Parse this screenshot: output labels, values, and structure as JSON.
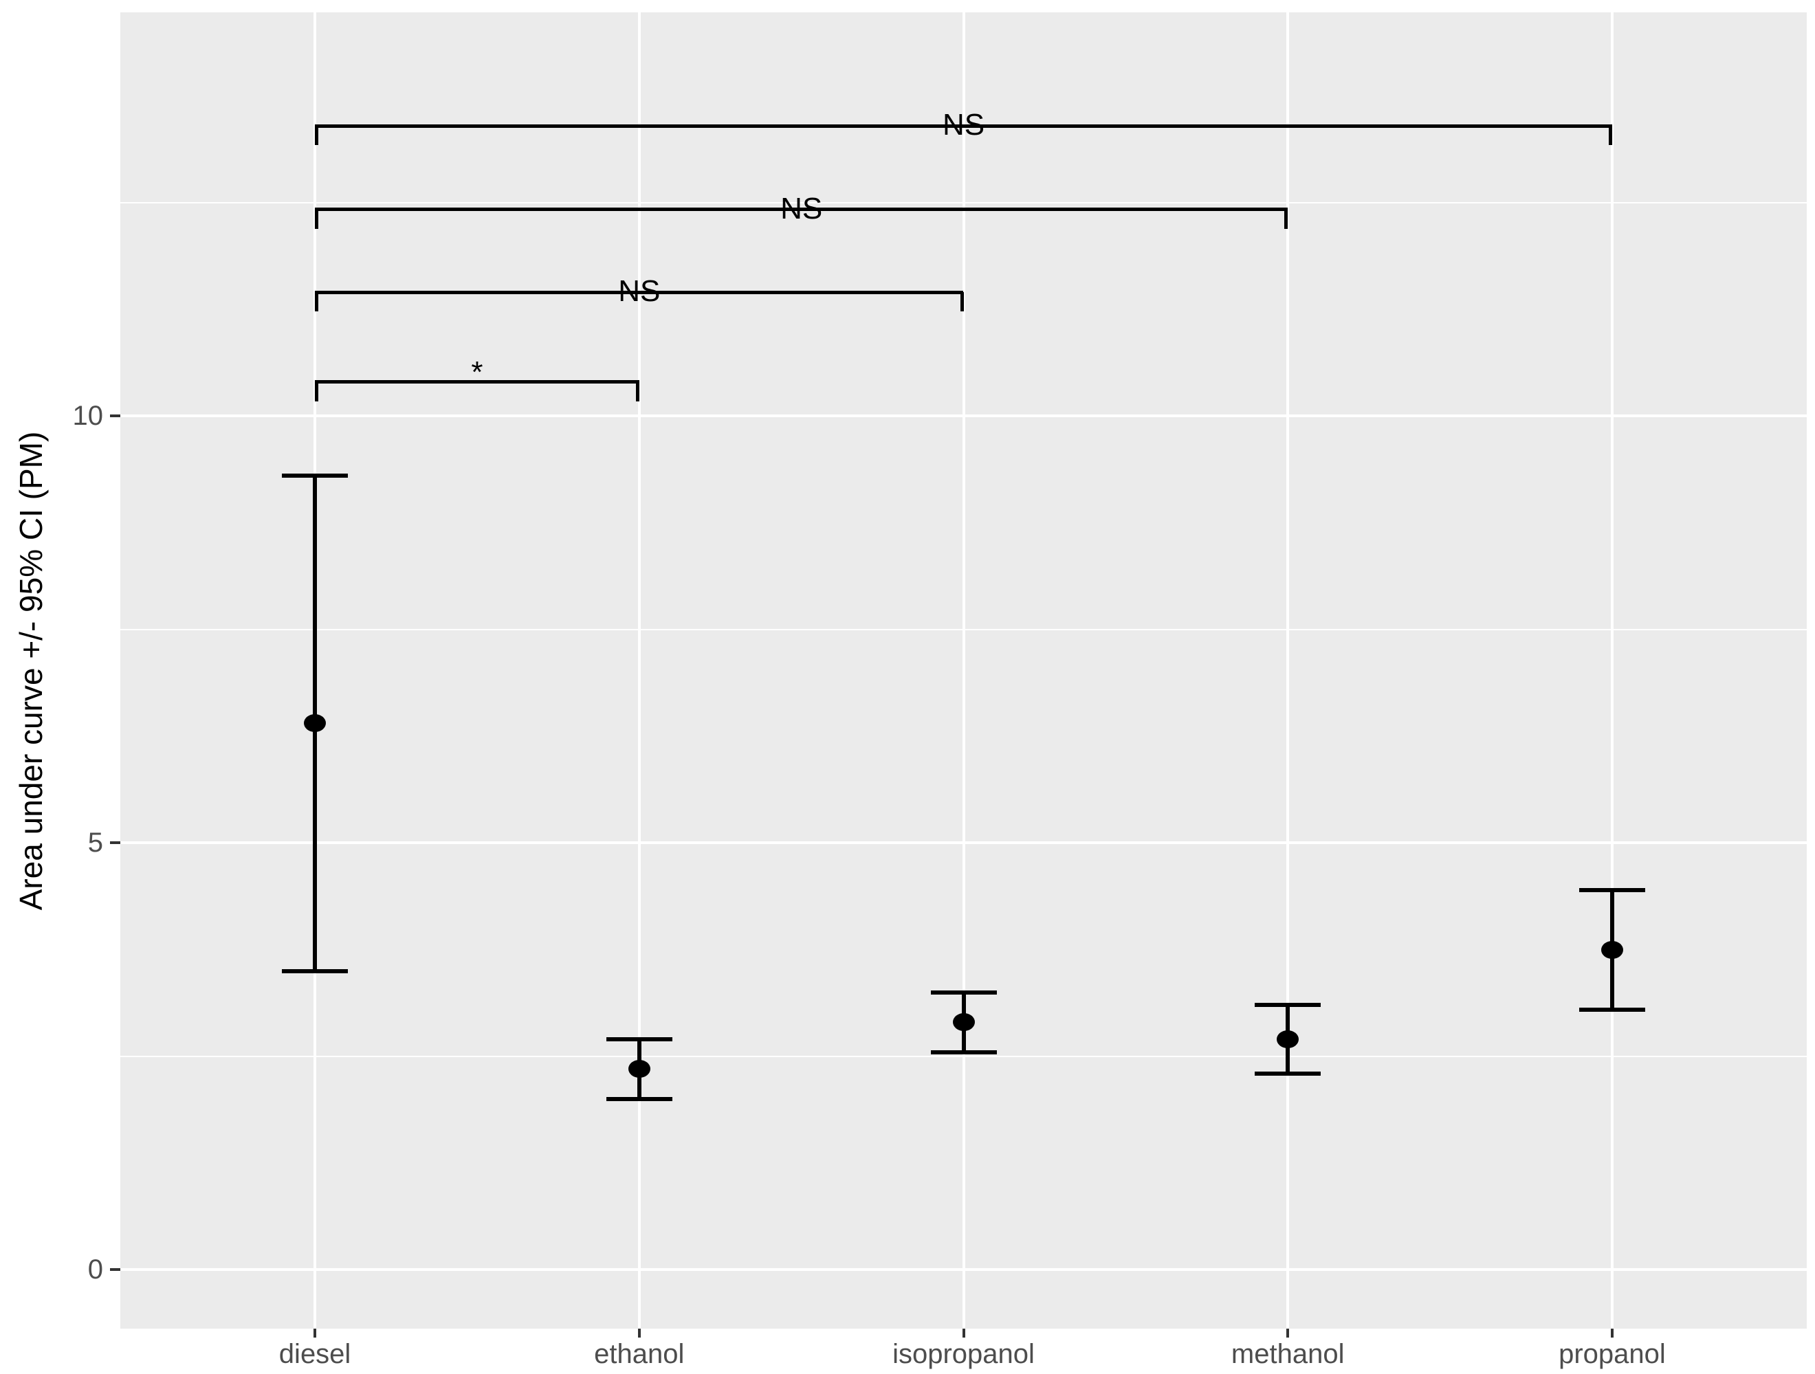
{
  "figure": {
    "background": "#ffffff",
    "panel_background": "#ebebeb",
    "gridline_color": "#ffffff",
    "axis_text_color": "#4d4d4d",
    "tick_color": "#333333",
    "data_color": "#000000"
  },
  "chart_data": {
    "type": "scatter",
    "subtype": "point-estimates-with-error-bars",
    "title": "",
    "xlabel": "",
    "ylabel": "Area under curve +/- 95% CI (PM)",
    "categories": [
      "diesel",
      "ethanol",
      "isopropanol",
      "methanol",
      "propanol"
    ],
    "series": [
      {
        "name": "Area under curve mean with 95% CI",
        "means": [
          6.4,
          2.35,
          2.9,
          2.7,
          3.75
        ],
        "ci_lower": [
          3.5,
          2.0,
          2.55,
          2.3,
          3.05
        ],
        "ci_upper": [
          9.3,
          2.7,
          3.25,
          3.1,
          4.45
        ]
      }
    ],
    "y_ticks": [
      0,
      5,
      10
    ],
    "y_tick_labels": [
      "0",
      "5",
      "10"
    ],
    "y_minor_ticks": [
      2.5,
      7.5,
      12.5
    ],
    "ylim": [
      -0.69,
      14.73
    ],
    "grid": "white major and minor gridlines on grey panel",
    "legend": "none",
    "significance_brackets": [
      {
        "from": "diesel",
        "to": "propanol",
        "label": "NS",
        "y": 13.4
      },
      {
        "from": "diesel",
        "to": "methanol",
        "label": "NS",
        "y": 12.42
      },
      {
        "from": "diesel",
        "to": "isopropanol",
        "label": "NS",
        "y": 11.45
      },
      {
        "from": "diesel",
        "to": "ethanol",
        "label": "*",
        "y": 10.4
      }
    ]
  }
}
